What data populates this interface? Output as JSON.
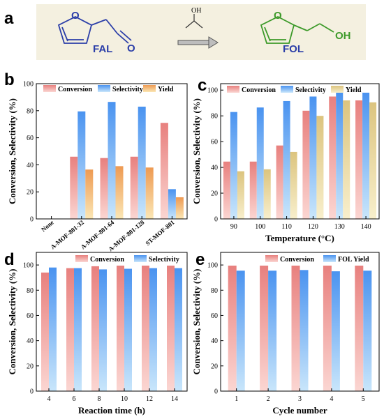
{
  "panels": {
    "a": "a",
    "b": "b",
    "c": "c",
    "d": "d",
    "e": "e"
  },
  "scheme": {
    "reactant_label": "FAL",
    "product_label": "FOL",
    "product_oh": "OH",
    "reagent_oh": "OH",
    "reactant_o": "O",
    "product_o": "O",
    "aldehyde_o": "O",
    "reactant_color": "#2b3ea8",
    "product_color": "#3d9a2a",
    "background": "#f4f0e0"
  },
  "colors": {
    "conversion": "#e8807e",
    "selectivity": "#4a93f0",
    "yield_b": "#ee9a52",
    "yield_c": "#dcc47e"
  },
  "chart_data": [
    {
      "id": "b",
      "type": "bar",
      "title": "",
      "xlabel": "",
      "ylabel": "Conversion, Selectivity (%)",
      "ylim": [
        0,
        100
      ],
      "yticks": [
        0,
        20,
        40,
        60,
        80,
        100
      ],
      "categories": [
        "None",
        "A-MOF-801-32",
        "A-MOF-801-64",
        "A-MOF-801-128",
        "ST-MOF-801"
      ],
      "legend": "top",
      "series": [
        {
          "name": "Conversion",
          "color_key": "conversion",
          "values": [
            0,
            46,
            45,
            46,
            71
          ]
        },
        {
          "name": "Selectivity",
          "color_key": "selectivity",
          "values": [
            0,
            79.5,
            86.5,
            83,
            22
          ]
        },
        {
          "name": "Yield",
          "color_key": "yield_b",
          "values": [
            0,
            36.5,
            39,
            38,
            16
          ]
        }
      ]
    },
    {
      "id": "c",
      "type": "bar",
      "title": "",
      "xlabel": "Temperature (°C)",
      "ylabel": "Conversion, Selectivity (%)",
      "ylim": [
        0,
        105
      ],
      "yticks": [
        0,
        20,
        40,
        60,
        80,
        100
      ],
      "categories": [
        "90",
        "100",
        "110",
        "120",
        "130",
        "140"
      ],
      "legend": "top",
      "series": [
        {
          "name": "Conversion",
          "color_key": "conversion",
          "values": [
            44.5,
            44.5,
            57,
            84,
            95,
            92
          ]
        },
        {
          "name": "Selectivity",
          "color_key": "selectivity",
          "values": [
            83,
            86.5,
            91.5,
            95,
            98,
            98
          ]
        },
        {
          "name": "Yield",
          "color_key": "yield_c",
          "values": [
            37,
            38.5,
            52,
            80,
            92,
            90.5
          ]
        }
      ]
    },
    {
      "id": "d",
      "type": "bar",
      "title": "",
      "xlabel": "Reaction time (h)",
      "ylabel": "Conversion, Selectivity (%)",
      "ylim": [
        0,
        110
      ],
      "yticks": [
        0,
        20,
        40,
        60,
        80,
        100
      ],
      "categories": [
        "4",
        "6",
        "8",
        "10",
        "12",
        "14"
      ],
      "legend": "top",
      "series": [
        {
          "name": "Conversion",
          "color_key": "conversion",
          "values": [
            94,
            97.5,
            99,
            99.5,
            99.5,
            99.5
          ]
        },
        {
          "name": "Selectivity",
          "color_key": "selectivity",
          "values": [
            98,
            97.5,
            96.5,
            97,
            97.5,
            97.5
          ]
        }
      ]
    },
    {
      "id": "e",
      "type": "bar",
      "title": "",
      "xlabel": "Cycle number",
      "ylabel": "Conversion, Selectivity (%)",
      "ylim": [
        0,
        110
      ],
      "yticks": [
        0,
        20,
        40,
        60,
        80,
        100
      ],
      "categories": [
        "1",
        "2",
        "3",
        "4",
        "5"
      ],
      "legend": "top",
      "series": [
        {
          "name": "Conversion",
          "color_key": "conversion",
          "values": [
            99.5,
            99.5,
            99.5,
            99.5,
            99.5
          ]
        },
        {
          "name": "FOL Yield",
          "color_key": "selectivity",
          "values": [
            95.5,
            95.5,
            96,
            95,
            95.5
          ]
        }
      ]
    }
  ]
}
